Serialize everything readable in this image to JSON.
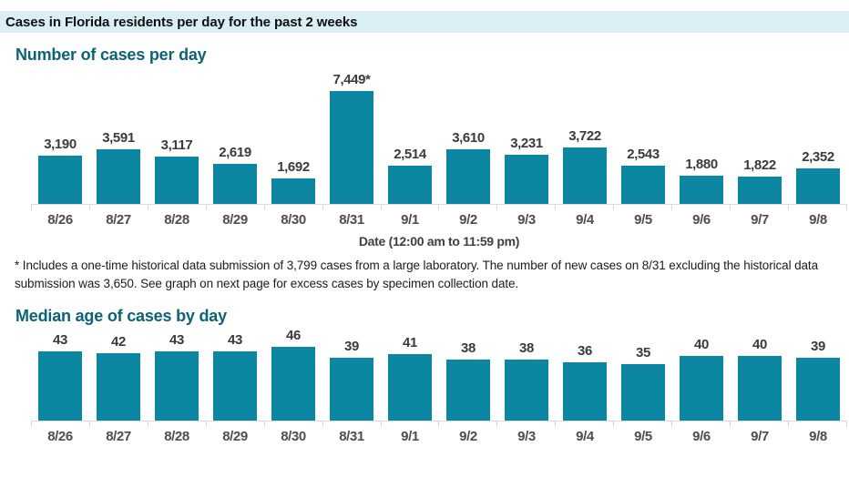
{
  "header": {
    "title": "Cases in Florida residents per day for the past 2 weeks"
  },
  "chart_data": [
    {
      "type": "bar",
      "title": "Number of cases per day",
      "xlabel": "Date (12:00 am to 11:59 pm)",
      "categories": [
        "8/26",
        "8/27",
        "8/28",
        "8/29",
        "8/30",
        "8/31",
        "9/1",
        "9/2",
        "9/3",
        "9/4",
        "9/5",
        "9/6",
        "9/7",
        "9/8"
      ],
      "values": [
        3190,
        3591,
        3117,
        2619,
        1692,
        7449,
        2514,
        3610,
        3231,
        3722,
        2543,
        1880,
        1822,
        2352
      ],
      "value_labels": [
        "3,190",
        "3,591",
        "3,117",
        "2,619",
        "1,692",
        "7,449*",
        "2,514",
        "3,610",
        "3,231",
        "3,722",
        "2,543",
        "1,880",
        "1,822",
        "2,352"
      ],
      "ylim": [
        0,
        7449
      ],
      "bar_color": "#0d86a2",
      "grid": false,
      "legend": "none"
    },
    {
      "type": "bar",
      "title": "Median age of cases by day",
      "xlabel": "",
      "categories": [
        "8/26",
        "8/27",
        "8/28",
        "8/29",
        "8/30",
        "8/31",
        "9/1",
        "9/2",
        "9/3",
        "9/4",
        "9/5",
        "9/6",
        "9/7",
        "9/8"
      ],
      "values": [
        43,
        42,
        43,
        43,
        46,
        39,
        41,
        38,
        38,
        36,
        35,
        40,
        40,
        39
      ],
      "value_labels": [
        "43",
        "42",
        "43",
        "43",
        "46",
        "39",
        "41",
        "38",
        "38",
        "36",
        "35",
        "40",
        "40",
        "39"
      ],
      "ylim": [
        0,
        46
      ],
      "bar_color": "#0d86a2",
      "grid": false,
      "legend": "none"
    }
  ],
  "footnote": "* Includes a one-time historical data submission of 3,799 cases from a large laboratory. The number of new cases on 8/31 excluding the historical data submission was 3,650. See graph on next page for excess cases by specimen collection date.",
  "colors": {
    "bar_teal": "#0d86a2",
    "header_background": "#d9eef5",
    "section_title_teal": "#0d6277",
    "baseline_gray": "#d9d9d9"
  }
}
